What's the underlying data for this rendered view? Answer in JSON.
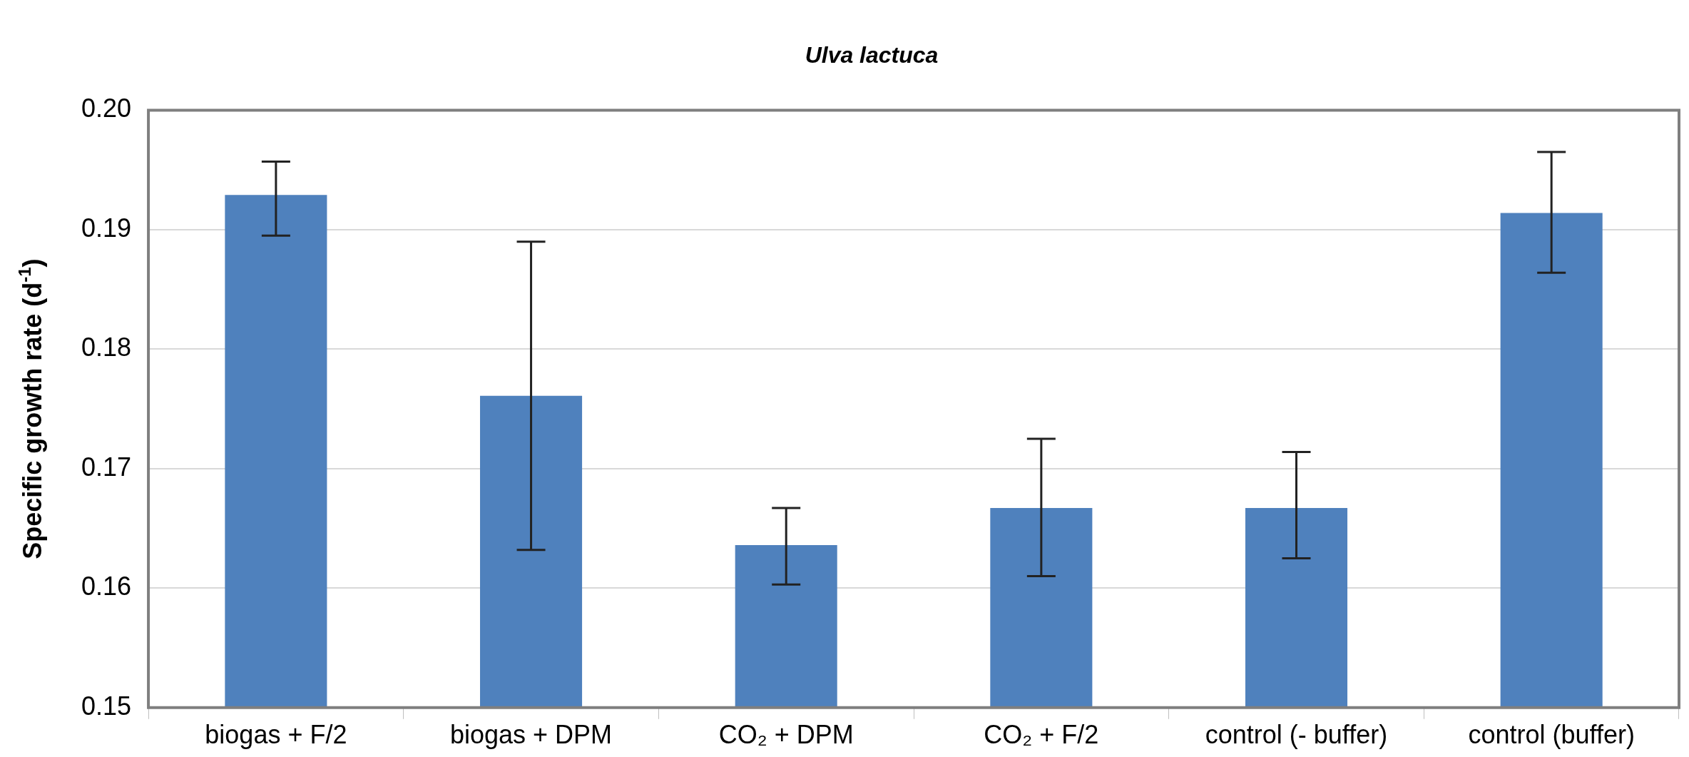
{
  "chart_data": {
    "type": "bar",
    "title": "Ulva lactuca",
    "ylabel": "Specific growth rate (d$^{-1}$)",
    "categories": [
      "biogas + F/2",
      "biogas + DPM",
      "CO₂ + DPM",
      "CO₂ + F/2",
      "control (- buffer)",
      "control (buffer)"
    ],
    "values": [
      0.1929,
      0.1761,
      0.1636,
      0.1667,
      0.1667,
      0.1914
    ],
    "errors": [
      [
        0.1895,
        0.1957
      ],
      [
        0.1632,
        0.189
      ],
      [
        0.1603,
        0.1667
      ],
      [
        0.161,
        0.1725
      ],
      [
        0.1625,
        0.1714
      ],
      [
        0.1864,
        0.1965
      ]
    ],
    "color": "#4f81bd",
    "ylim": [
      0.15,
      0.2
    ],
    "yticks": [
      {
        "value": 0.15,
        "label": "0.15"
      },
      {
        "value": 0.16,
        "label": "0.16"
      },
      {
        "value": 0.17,
        "label": "0.17"
      },
      {
        "value": 0.18,
        "label": "0.18"
      },
      {
        "value": 0.19,
        "label": "0.19"
      },
      {
        "value": 0.2,
        "label": "0.20"
      }
    ],
    "grid": "y"
  }
}
